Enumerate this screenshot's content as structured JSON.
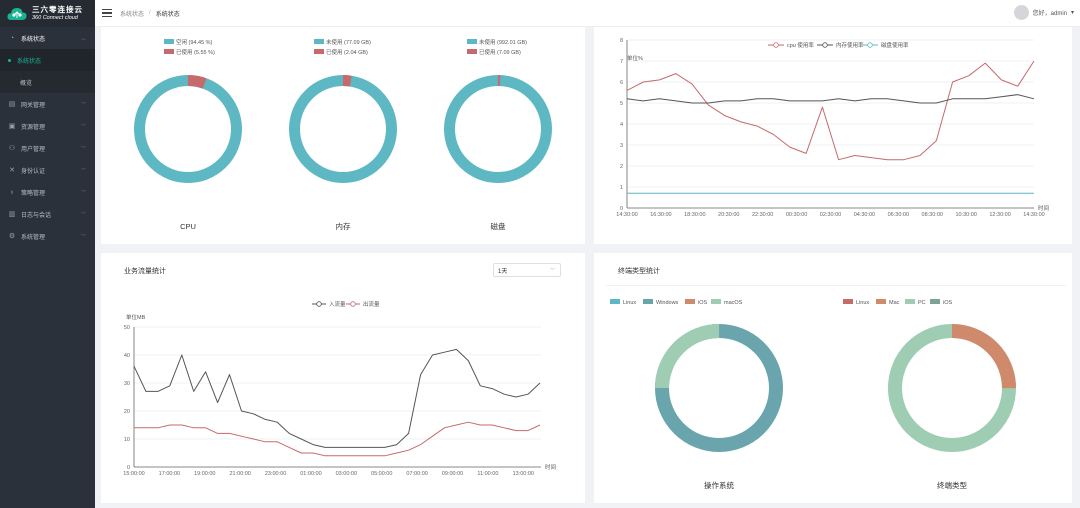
{
  "app": {
    "name_cn": "三六零连接云",
    "name_en": "360 Connect cloud"
  },
  "sidebar": {
    "items": [
      {
        "label": "系统状态",
        "icon": "dashboard-icon",
        "open": true,
        "children": [
          {
            "label": "系统状态",
            "active": true
          },
          {
            "label": "概览",
            "active": false
          }
        ]
      },
      {
        "label": "网关管理",
        "icon": "gateway-icon"
      },
      {
        "label": "资源管理",
        "icon": "resource-icon"
      },
      {
        "label": "用户管理",
        "icon": "user-icon"
      },
      {
        "label": "身份认证",
        "icon": "auth-icon"
      },
      {
        "label": "策略管理",
        "icon": "policy-icon"
      },
      {
        "label": "日志与会话",
        "icon": "log-icon"
      },
      {
        "label": "系统管理",
        "icon": "settings-icon"
      }
    ]
  },
  "header": {
    "breadcrumb_parent": "系统状态",
    "breadcrumb_current": "系统状态",
    "user_text": "您好，admin"
  },
  "gauges": [
    {
      "caption": "CPU",
      "legend": [
        "空闲 (94.45 %)",
        "已使用 (5.55 %)"
      ],
      "used_fraction": 0.0555
    },
    {
      "caption": "内存",
      "legend": [
        "未使用 (77.09 GB)",
        "已使用 (2.04 GB)"
      ],
      "used_fraction": 0.0258
    },
    {
      "caption": "磁盘",
      "legend": [
        "未使用 (992.01 GB)",
        "已使用 (7.09 GB)"
      ],
      "used_fraction": 0.0071
    }
  ],
  "resource_chart": {
    "legend": [
      "cpu 使用率",
      "内存使用率",
      "磁盘使用率"
    ],
    "ylabel": "单位%",
    "xlabel": "时间",
    "y_ticks": [
      "0",
      "1",
      "2",
      "3",
      "4",
      "5",
      "6",
      "7",
      "8"
    ],
    "x_ticks": [
      "14:30:00",
      "16:30:00",
      "18:30:00",
      "20:30:00",
      "22:30:00",
      "00:30:00",
      "02:30:00",
      "04:30:00",
      "06:30:00",
      "08:30:00",
      "10:30:00",
      "12:30:00",
      "14:30:00"
    ]
  },
  "traffic_card": {
    "title": "业务流量统计",
    "range": "1天"
  },
  "traffic_chart": {
    "legend": [
      "入流量",
      "出流量"
    ],
    "ylabel": "单位MB",
    "xlabel": "时间",
    "y_ticks": [
      "0",
      "10",
      "20",
      "30",
      "40",
      "50"
    ],
    "x_ticks": [
      "15:00:00",
      "17:00:00",
      "19:00:00",
      "21:00:00",
      "23:00:00",
      "01:00:00",
      "03:00:00",
      "05:00:00",
      "07:00:00",
      "09:00:00",
      "11:00:00",
      "13:00:00"
    ]
  },
  "terminal_card": {
    "title": "终端类型统计",
    "os_legend": [
      "Linux",
      "Windows",
      "iOS",
      "macOS"
    ],
    "os_caption": "操作系统",
    "type_legend": [
      "Linux",
      "Mac",
      "PC",
      "iOS"
    ],
    "type_caption": "终端类型"
  },
  "colors": {
    "accent": "#19b394",
    "teal": "#5eb8c4",
    "red": "#c66a6c",
    "teal_dark": "#6aa5ad",
    "mint": "#9fcdb4",
    "coral": "#cf8a6c",
    "grey_green": "#7ea392"
  },
  "chart_data": [
    {
      "type": "pie",
      "title": "CPU",
      "categories": [
        "空闲",
        "已使用"
      ],
      "values": [
        94.45,
        5.55
      ]
    },
    {
      "type": "pie",
      "title": "内存",
      "categories": [
        "未使用",
        "已使用"
      ],
      "values": [
        77.09,
        2.04
      ]
    },
    {
      "type": "pie",
      "title": "磁盘",
      "categories": [
        "未使用",
        "已使用"
      ],
      "values": [
        992.01,
        7.09
      ]
    },
    {
      "type": "line",
      "ylabel": "单位%",
      "xlabel": "时间",
      "ylim": [
        0,
        8
      ],
      "x": [
        "14:30",
        "15:30",
        "16:30",
        "17:30",
        "18:30",
        "19:30",
        "20:30",
        "21:30",
        "22:30",
        "23:30",
        "00:30",
        "01:30",
        "02:00",
        "02:30",
        "03:30",
        "04:30",
        "05:30",
        "06:30",
        "07:30",
        "08:30",
        "09:30",
        "10:30",
        "11:30",
        "12:30",
        "13:30",
        "14:30"
      ],
      "series": [
        {
          "name": "cpu 使用率",
          "values": [
            5.6,
            6.0,
            6.1,
            6.4,
            5.9,
            4.9,
            4.4,
            4.1,
            3.9,
            3.5,
            2.9,
            2.6,
            4.8,
            2.3,
            2.5,
            2.4,
            2.3,
            2.3,
            2.5,
            3.2,
            6.0,
            6.3,
            6.9,
            6.1,
            5.8,
            7.0
          ]
        },
        {
          "name": "内存使用率",
          "values": [
            5.2,
            5.1,
            5.2,
            5.1,
            5.0,
            5.0,
            5.1,
            5.1,
            5.2,
            5.2,
            5.1,
            5.1,
            5.1,
            5.2,
            5.1,
            5.2,
            5.2,
            5.1,
            5.0,
            5.0,
            5.2,
            5.2,
            5.2,
            5.3,
            5.4,
            5.2
          ]
        },
        {
          "name": "磁盘使用率",
          "values": [
            0.7,
            0.7,
            0.7,
            0.7,
            0.7,
            0.7,
            0.7,
            0.7,
            0.7,
            0.7,
            0.7,
            0.7,
            0.7,
            0.7,
            0.7,
            0.7,
            0.7,
            0.7,
            0.7,
            0.7,
            0.7,
            0.7,
            0.7,
            0.7,
            0.7,
            0.7
          ]
        }
      ]
    },
    {
      "type": "line",
      "ylabel": "单位MB",
      "xlabel": "时间",
      "ylim": [
        0,
        50
      ],
      "x": [
        "15:00",
        "15:30",
        "16:00",
        "16:30",
        "17:00",
        "17:30",
        "18:00",
        "18:30",
        "19:00",
        "19:30",
        "20:00",
        "21:00",
        "22:00",
        "23:00",
        "00:00",
        "01:00",
        "02:00",
        "03:00",
        "04:00",
        "05:00",
        "06:00",
        "07:00",
        "08:00",
        "08:30",
        "09:00",
        "09:30",
        "10:00",
        "10:30",
        "11:00",
        "11:30",
        "12:00",
        "12:30",
        "13:00",
        "13:30",
        "14:00"
      ],
      "series": [
        {
          "name": "入流量",
          "values": [
            36,
            27,
            27,
            29,
            40,
            27,
            34,
            23,
            33,
            20,
            19,
            17,
            16,
            12,
            10,
            8,
            7,
            7,
            7,
            7,
            7,
            7,
            8,
            12,
            33,
            40,
            41,
            42,
            38,
            29,
            28,
            26,
            25,
            26,
            30
          ]
        },
        {
          "name": "出流量",
          "values": [
            14,
            14,
            14,
            15,
            15,
            14,
            14,
            12,
            12,
            11,
            10,
            9,
            9,
            7,
            5,
            5,
            4,
            4,
            4,
            4,
            4,
            4,
            5,
            6,
            8,
            11,
            14,
            15,
            16,
            15,
            15,
            14,
            13,
            13,
            15
          ]
        }
      ]
    },
    {
      "type": "pie",
      "title": "操作系统",
      "categories": [
        "Linux",
        "Windows",
        "iOS",
        "macOS"
      ],
      "values": [
        0,
        75,
        0,
        25
      ]
    },
    {
      "type": "pie",
      "title": "终端类型",
      "categories": [
        "Linux",
        "Mac",
        "PC",
        "iOS"
      ],
      "values": [
        0,
        25,
        75,
        0
      ]
    }
  ]
}
